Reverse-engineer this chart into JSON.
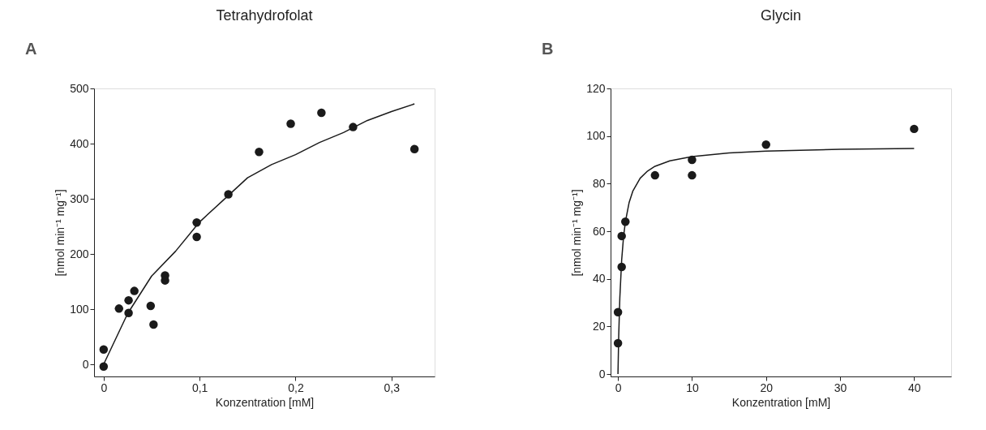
{
  "chart_data": [
    {
      "type": "scatter",
      "title": "Tetrahydrofolat",
      "xlabel": "Konzentration [mM]",
      "ylabel": "[nmol min⁻¹ mg⁻¹]",
      "annotations": [
        "A"
      ],
      "xlim": [
        -0.01,
        0.345
      ],
      "xticks": [
        0,
        {
          "value": 0.1,
          "label": "0,1"
        },
        {
          "value": 0.2,
          "label": "0,2"
        },
        {
          "value": 0.3,
          "label": "0,3"
        }
      ],
      "ylim": [
        -22,
        500
      ],
      "yticks": [
        0,
        100,
        200,
        300,
        400,
        500
      ],
      "grid": false,
      "series": [
        {
          "color": "#1a1a1a",
          "marker": "circle",
          "x": [
            0,
            0,
            0.016,
            0.026,
            0.026,
            0.032,
            0.049,
            0.052,
            0.064,
            0.064,
            0.097,
            0.097,
            0.13,
            0.162,
            0.195,
            0.227,
            0.26,
            0.324
          ],
          "values": [
            27,
            -4,
            101,
            116,
            93,
            133,
            106,
            72,
            161,
            152,
            257,
            231,
            308,
            385,
            436,
            456,
            430,
            390
          ]
        },
        {
          "type": "line",
          "color": "#1a1a1a",
          "line_style": "solid",
          "x": [
            0,
            0.025,
            0.05,
            0.075,
            0.1,
            0.125,
            0.15,
            0.175,
            0.2,
            0.225,
            0.25,
            0.275,
            0.3,
            0.324
          ],
          "values": [
            0,
            92,
            160,
            205,
            258,
            298,
            338,
            362,
            380,
            402,
            420,
            442,
            458,
            472
          ]
        }
      ]
    },
    {
      "type": "scatter",
      "title": "Glycin",
      "xlabel": "Konzentration [mM]",
      "ylabel": "[nmol min⁻¹ mg⁻¹]",
      "annotations": [
        "B"
      ],
      "xlim": [
        -1,
        45
      ],
      "xticks": [
        0,
        10,
        20,
        30,
        40
      ],
      "ylim": [
        -1,
        120
      ],
      "yticks": [
        0,
        20,
        40,
        60,
        80,
        100,
        120
      ],
      "grid": false,
      "series": [
        {
          "color": "#1a1a1a",
          "marker": "circle",
          "x": [
            0,
            0,
            0.5,
            0.5,
            1,
            5,
            10,
            10,
            20,
            40
          ],
          "values": [
            13,
            26,
            45,
            58,
            64,
            83.5,
            83.5,
            90,
            96.4,
            103
          ]
        },
        {
          "type": "line",
          "color": "#1a1a1a",
          "line_style": "solid",
          "x": [
            0,
            0.1,
            0.25,
            0.5,
            0.75,
            1,
            1.5,
            2,
            3,
            4,
            5,
            7,
            10,
            15,
            20,
            30,
            40
          ],
          "values": [
            0,
            16,
            32,
            48,
            57.6,
            64,
            72,
            76.8,
            82.3,
            85.3,
            87.3,
            89.6,
            91.4,
            92.9,
            93.7,
            94.4,
            94.8
          ]
        }
      ]
    }
  ]
}
